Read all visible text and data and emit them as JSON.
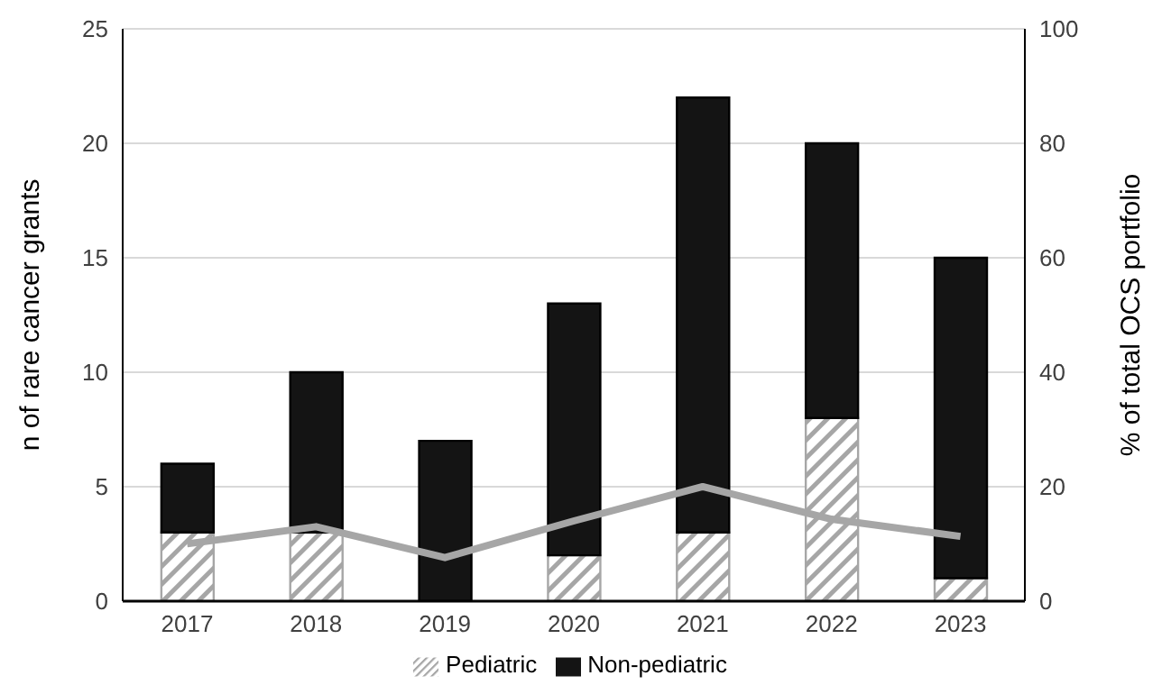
{
  "chart_data": {
    "type": "bar",
    "stacked": true,
    "ylabel": "n of rare cancer grants",
    "y2label": "% of total OCS portfolio",
    "categories": [
      "2017",
      "2018",
      "2019",
      "2020",
      "2021",
      "2022",
      "2023"
    ],
    "series": [
      {
        "name": "Pediatric",
        "color": "#a6a6a6",
        "values": [
          3,
          3,
          0,
          2,
          3,
          8,
          1
        ]
      },
      {
        "name": "Non-pediatric",
        "color": "#141414",
        "values": [
          3,
          7,
          7,
          11,
          19,
          12,
          14
        ]
      },
      {
        "type": "line",
        "axis": "y2",
        "color": "#a6a6a6",
        "values": [
          10,
          13,
          7.6,
          14,
          20,
          14.3,
          11.3
        ]
      }
    ],
    "ylim": [
      0,
      25
    ],
    "yticks": [
      0,
      5,
      10,
      15,
      20,
      25
    ],
    "y2lim": [
      0,
      100
    ],
    "y2ticks": [
      0,
      20,
      40,
      60,
      80,
      100
    ],
    "grid": "y",
    "legend": "bottom",
    "marker": "none"
  }
}
